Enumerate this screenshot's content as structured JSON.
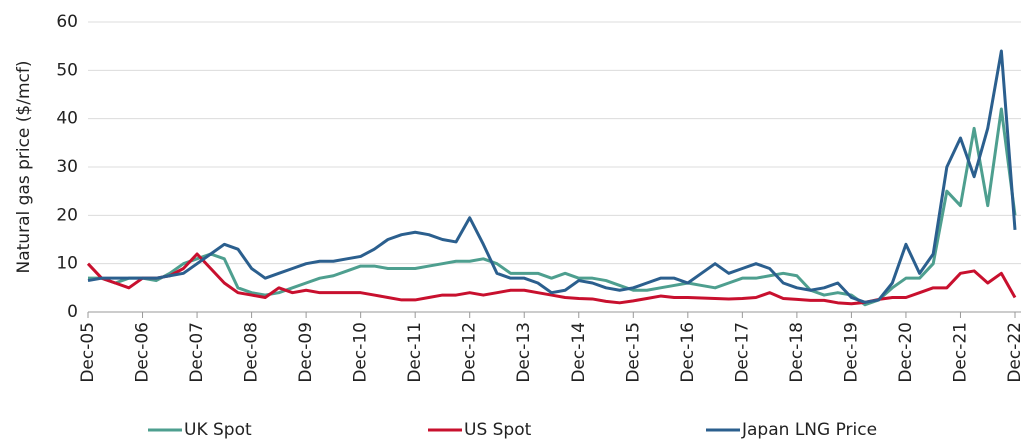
{
  "chart_data": {
    "type": "line",
    "y_label": "Natural gas price ($/mcf)",
    "categories": [
      "Dec-05",
      null,
      null,
      null,
      "Dec-06",
      null,
      null,
      null,
      "Dec-07",
      null,
      null,
      null,
      "Dec-08",
      null,
      null,
      null,
      "Dec-09",
      null,
      null,
      null,
      "Dec-10",
      null,
      null,
      null,
      "Dec-11",
      null,
      null,
      null,
      "Dec-12",
      null,
      null,
      null,
      "Dec-13",
      null,
      null,
      null,
      "Dec-14",
      null,
      null,
      null,
      "Dec-15",
      null,
      null,
      null,
      "Dec-16",
      null,
      null,
      null,
      "Dec-17",
      null,
      null,
      null,
      "Dec-18",
      null,
      null,
      null,
      "Dec-19",
      null,
      null,
      null,
      "Dec-20",
      null,
      null,
      null,
      "Dec-21",
      null,
      null,
      null,
      "Dec-22"
    ],
    "series": [
      {
        "name": "UK Spot",
        "color": "#4e9f8f",
        "values": [
          7,
          7,
          6,
          7,
          7,
          6.5,
          8,
          10,
          11,
          12,
          11,
          5,
          4,
          3.5,
          4,
          5,
          6,
          7,
          7.5,
          8.5,
          9.5,
          9.5,
          9,
          9,
          9,
          9.5,
          10,
          10.5,
          10.5,
          11,
          10,
          8,
          8,
          8,
          7,
          8,
          7,
          7,
          6.5,
          5.5,
          4.5,
          4.5,
          5,
          5.5,
          6,
          5.5,
          5,
          6,
          7,
          7,
          7.5,
          8,
          7.5,
          4.5,
          3.5,
          4,
          3.5,
          1.5,
          2.5,
          5,
          7,
          7,
          10,
          25,
          22,
          38,
          22,
          42,
          20
        ]
      },
      {
        "name": "US Spot",
        "color": "#c8102e",
        "values": [
          10,
          7,
          6,
          5,
          7,
          7,
          7.5,
          9,
          12,
          9,
          6,
          4,
          3.5,
          3,
          5,
          4,
          4.5,
          4,
          4,
          4,
          4,
          3.5,
          3,
          2.5,
          2.5,
          3,
          3.5,
          3.5,
          4,
          3.5,
          4,
          4.5,
          4.5,
          4,
          3.5,
          3,
          2.8,
          2.7,
          2.2,
          1.9,
          2.3,
          2.8,
          3.3,
          3,
          3,
          2.9,
          2.8,
          2.7,
          2.8,
          3,
          4,
          2.8,
          2.6,
          2.4,
          2.4,
          1.9,
          1.7,
          2,
          2.6,
          3,
          3,
          4,
          5,
          5,
          8,
          8.5,
          6,
          8,
          3
        ]
      },
      {
        "name": "Japan LNG Price",
        "color": "#2b5f8e",
        "values": [
          6.5,
          7,
          7,
          7,
          7,
          7,
          7.5,
          8,
          10,
          12,
          14,
          13,
          9,
          7,
          8,
          9,
          10,
          10.5,
          10.5,
          11,
          11.5,
          13,
          15,
          16,
          16.5,
          16,
          15,
          14.5,
          19.5,
          14,
          8,
          7,
          7,
          6,
          4,
          4.5,
          6.5,
          6,
          5,
          4.5,
          5,
          6,
          7,
          7,
          6,
          8,
          10,
          8,
          9,
          10,
          9,
          6,
          5,
          4.5,
          5,
          6,
          3,
          2,
          2.5,
          6,
          14,
          8,
          12,
          30,
          36,
          28,
          38,
          54,
          17
        ]
      }
    ],
    "ylim": [
      0,
      60
    ],
    "yticks": [
      0,
      10,
      20,
      30,
      40,
      50,
      60
    ],
    "grid": true,
    "legend": "bottom"
  }
}
